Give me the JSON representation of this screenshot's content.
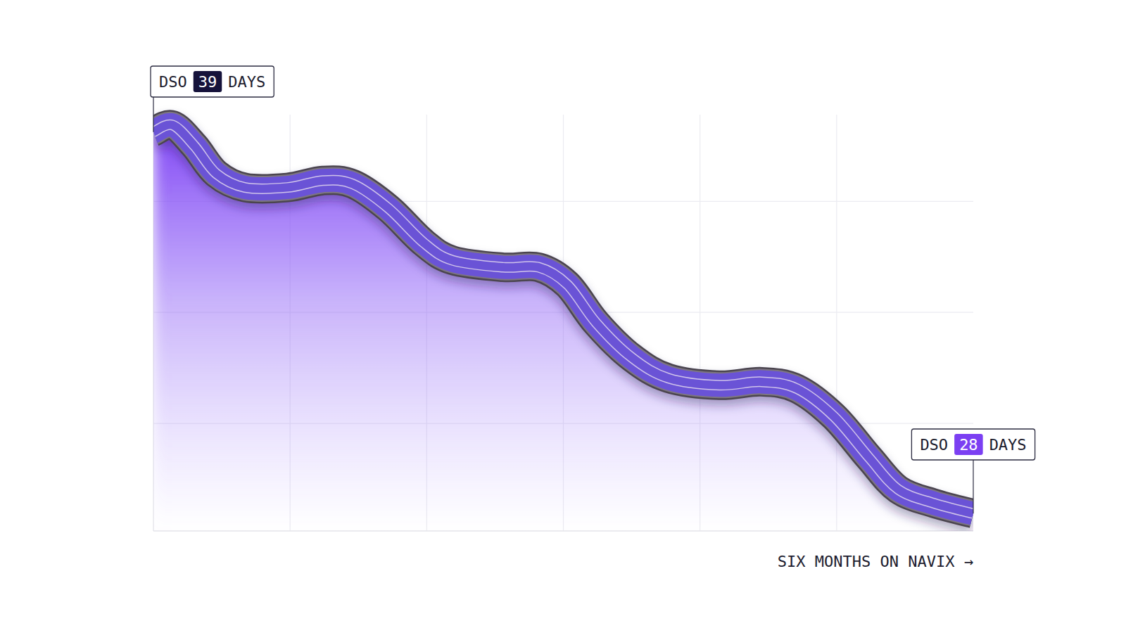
{
  "chart_data": {
    "type": "line",
    "x_label": "SIX MONTHS ON NAVIX →",
    "unit_label": "DAYS",
    "x": [
      0,
      0.14,
      0.3,
      0.46,
      0.67,
      0.98,
      1.24,
      1.46,
      1.72,
      1.98,
      2.19,
      2.56,
      2.82,
      3.03,
      3.24,
      3.5,
      3.77,
      4.14,
      4.45,
      4.71,
      4.98,
      5.24,
      5.45,
      5.71,
      6
    ],
    "series": [
      {
        "name": "DSO",
        "color": "#6b52d6",
        "values": [
          39,
          39.2,
          38.6,
          37.8,
          37.4,
          37.4,
          37.6,
          37.5,
          36.8,
          35.8,
          35.3,
          35.1,
          35.1,
          34.6,
          33.5,
          32.5,
          31.9,
          31.7,
          31.8,
          31.6,
          30.8,
          29.6,
          28.7,
          28.3,
          28
        ]
      }
    ],
    "xlim": [
      0,
      6
    ],
    "xticks": [
      1,
      2,
      3,
      4,
      5
    ],
    "ylim": [
      27.5,
      39.5
    ],
    "yticks": [
      30.6,
      33.8,
      37
    ],
    "grid": true,
    "tick_labels": false
  }
}
